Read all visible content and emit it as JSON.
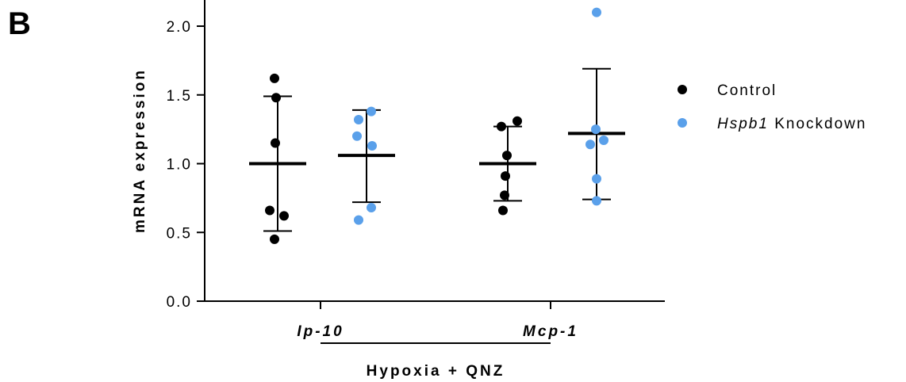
{
  "panel_label": "B",
  "chart_data": {
    "type": "scatter",
    "ylabel": "mRNA expression",
    "xlabel": "Hypoxia + QNZ",
    "ylim": [
      0,
      2.0
    ],
    "yticks": [
      "0.0",
      "0.5",
      "1.0",
      "1.5",
      "2.0"
    ],
    "categories": [
      "Ip-10",
      "Mcp-1"
    ],
    "series": [
      {
        "name": "Control",
        "color": "#000000",
        "groups": [
          {
            "category": "Ip-10",
            "points": [
              1.62,
              1.48,
              1.15,
              0.66,
              0.62,
              0.45
            ],
            "mean": 1.0,
            "sd_low": 0.51,
            "sd_high": 1.49
          },
          {
            "category": "Mcp-1",
            "points": [
              1.31,
              1.27,
              1.06,
              0.91,
              0.77,
              0.66
            ],
            "mean": 1.0,
            "sd_low": 0.73,
            "sd_high": 1.27
          }
        ]
      },
      {
        "name": "Hspb1 Knockdown",
        "color": "#5aa0ea",
        "groups": [
          {
            "category": "Ip-10",
            "points": [
              1.38,
              1.32,
              1.2,
              1.13,
              0.68,
              0.59
            ],
            "mean": 1.06,
            "sd_low": 0.72,
            "sd_high": 1.39
          },
          {
            "category": "Mcp-1",
            "points": [
              2.1,
              1.25,
              1.17,
              1.14,
              0.89,
              0.73
            ],
            "mean": 1.22,
            "sd_low": 0.74,
            "sd_high": 1.69
          }
        ]
      }
    ],
    "legend": {
      "placement": "right",
      "entries": [
        {
          "label": "Control",
          "italic_part": "",
          "rest": "Control"
        },
        {
          "label": "Hspb1 Knockdown",
          "italic_part": "Hspb1",
          "rest": " Knockdown"
        }
      ]
    }
  }
}
